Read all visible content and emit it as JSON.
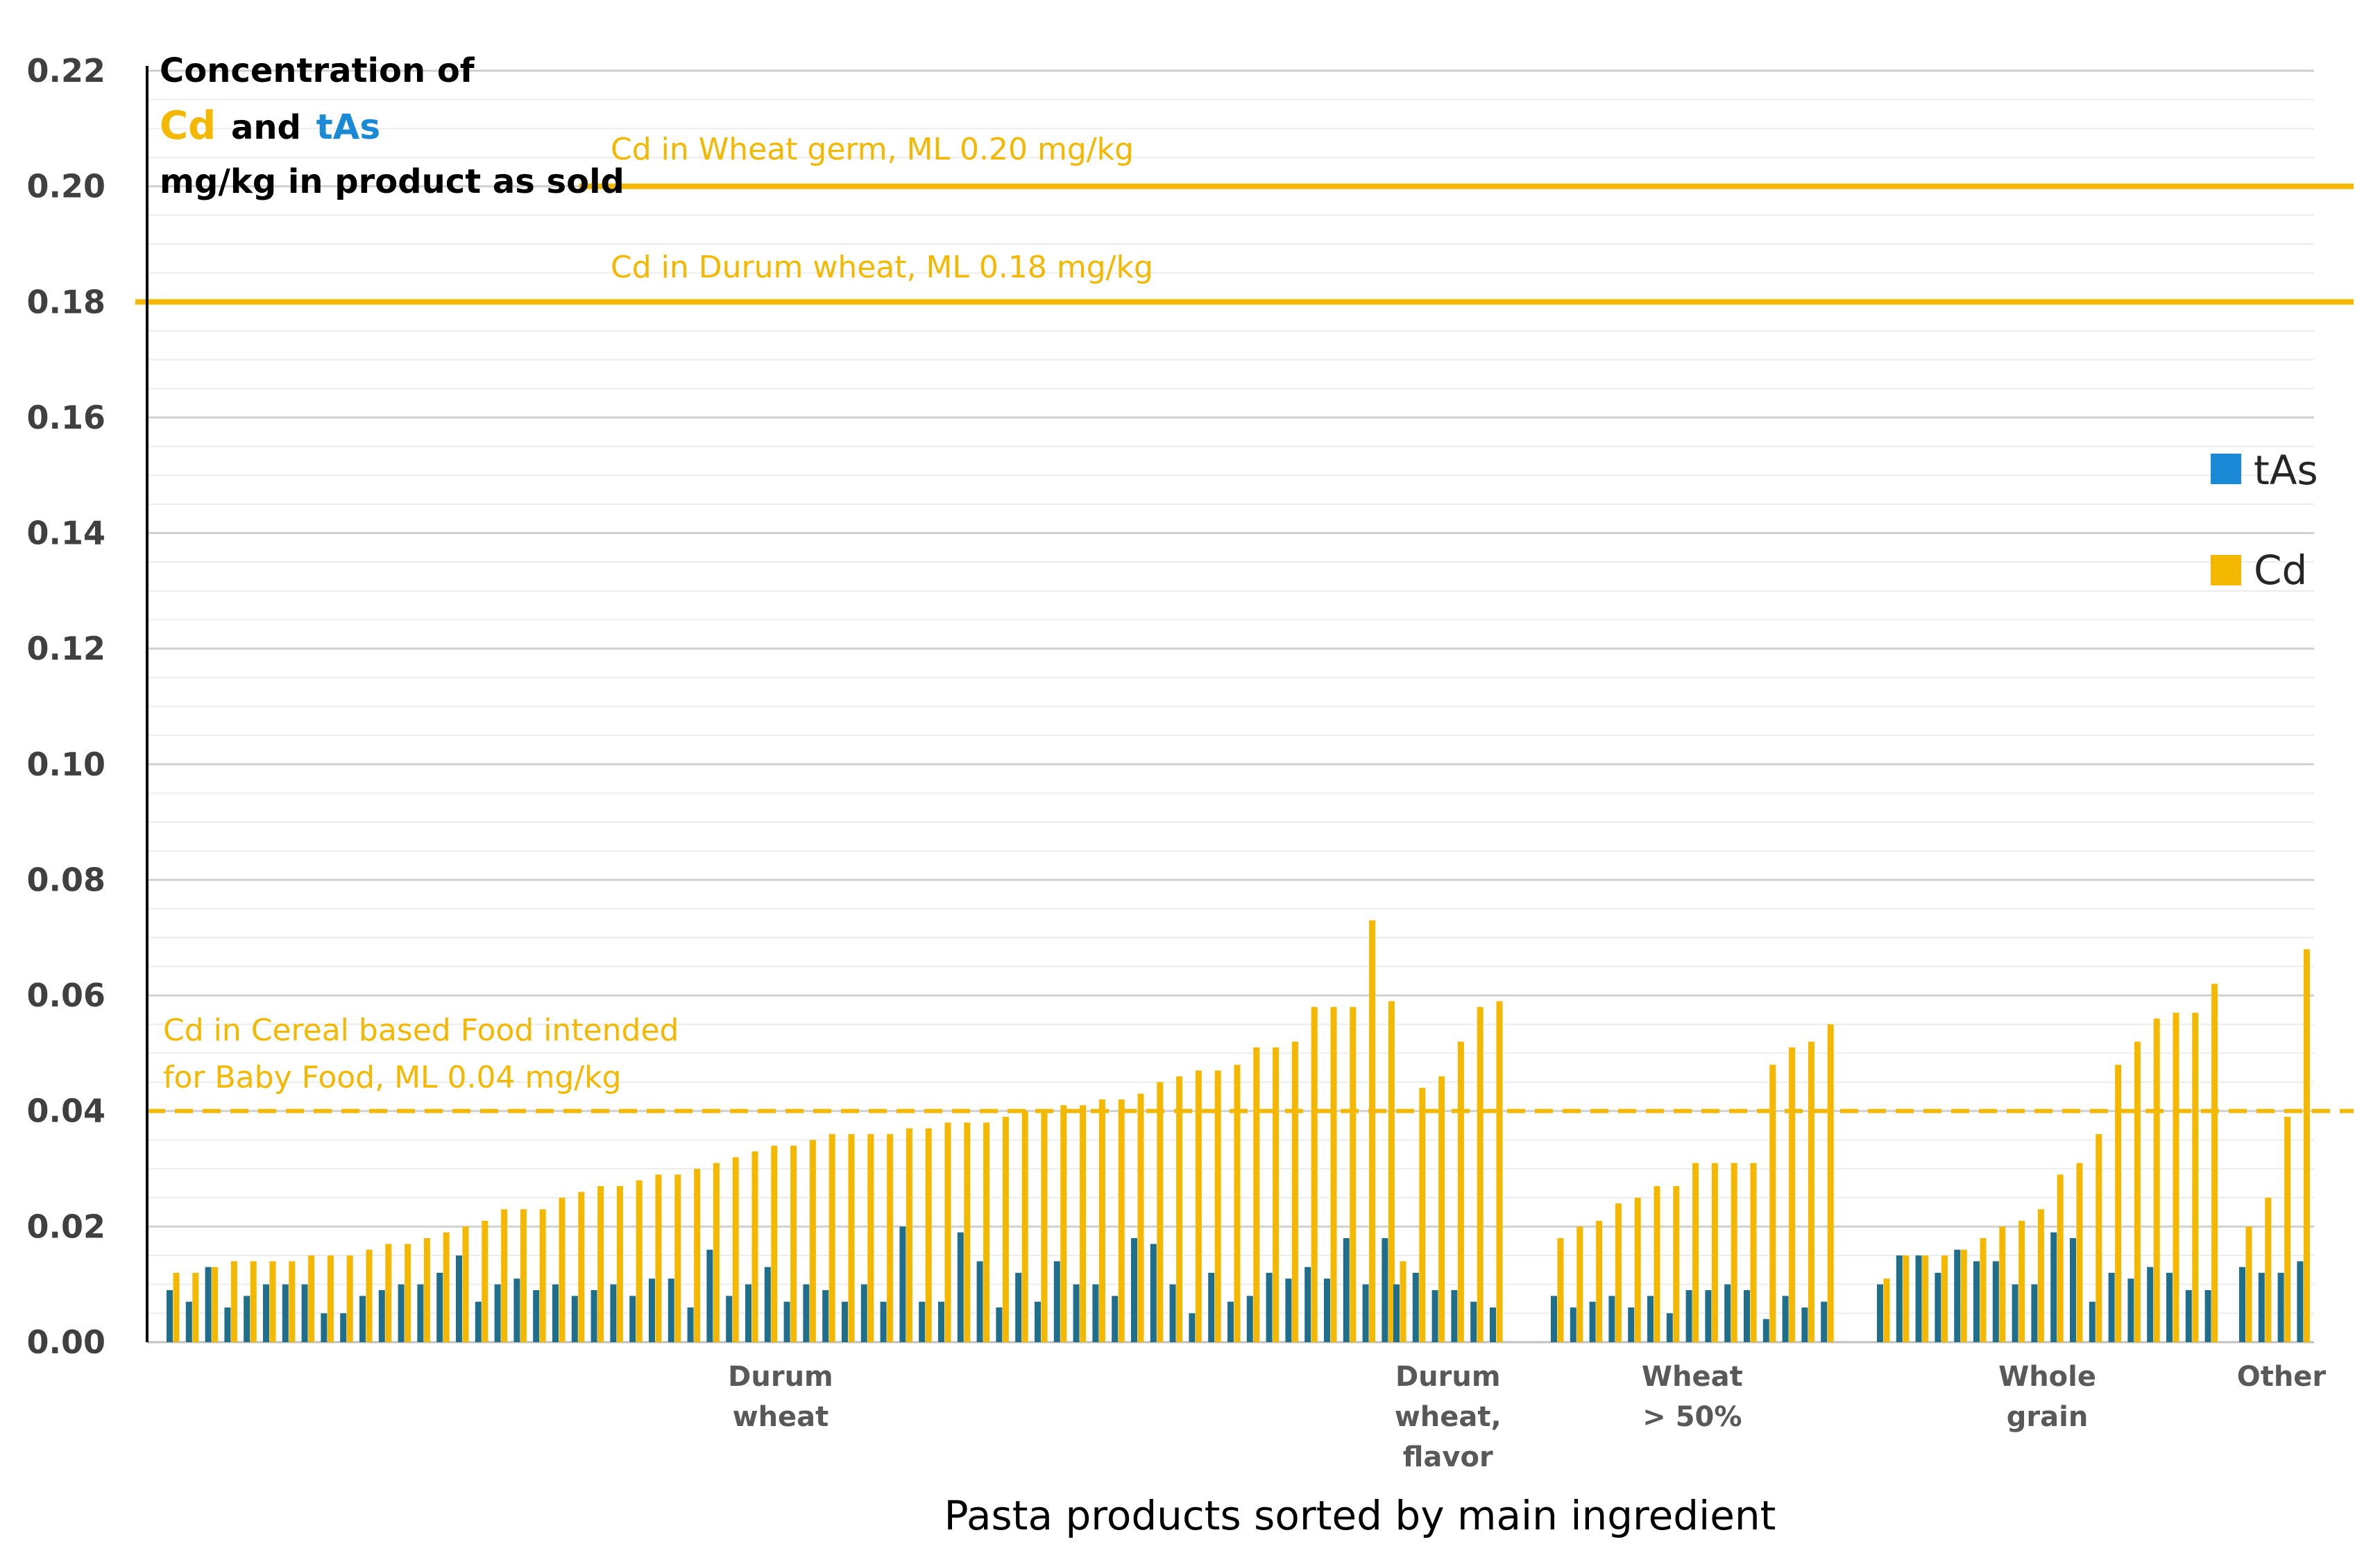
{
  "chart_data": {
    "type": "bar",
    "title_line1": "Concentration of",
    "title_cd": "Cd",
    "title_and": " and ",
    "title_tas": "tAs",
    "title_line3": "mg/kg in product as sold",
    "xlabel": "Pasta products sorted by main ingredient",
    "ylim": [
      0,
      0.22
    ],
    "yticks": [
      "0.00",
      "0.02",
      "0.04",
      "0.06",
      "0.08",
      "0.10",
      "0.12",
      "0.14",
      "0.16",
      "0.18",
      "0.20",
      "0.22"
    ],
    "colors": {
      "Cd": "#F5B800",
      "tAs": "#1F6E8C",
      "tAs_legend": "#1B8AD6"
    },
    "legend": [
      {
        "name": "tAs",
        "color": "#1B8AD6"
      },
      {
        "name": "Cd",
        "color": "#F5B800"
      }
    ],
    "reference_lines": [
      {
        "value": 0.2,
        "label": "Cd in Wheat germ, ML 0.20 mg/kg",
        "style": "solid"
      },
      {
        "value": 0.18,
        "label": "Cd in Durum wheat, ML 0.18 mg/kg",
        "style": "solid"
      },
      {
        "value": 0.04,
        "label_line1": "Cd in Cereal based Food intended",
        "label_line2": "for Baby Food, ML 0.04 mg/kg",
        "style": "dashed"
      }
    ],
    "groups": [
      {
        "label_lines": [
          "Durum",
          "wheat"
        ],
        "Cd": [
          0.012,
          0.012,
          0.013,
          0.014,
          0.014,
          0.014,
          0.014,
          0.015,
          0.015,
          0.015,
          0.016,
          0.017,
          0.017,
          0.018,
          0.019,
          0.02,
          0.021,
          0.023,
          0.023,
          0.023,
          0.025,
          0.026,
          0.027,
          0.027,
          0.028,
          0.029,
          0.029,
          0.03,
          0.031,
          0.032,
          0.033,
          0.034,
          0.034,
          0.035,
          0.036,
          0.036,
          0.036,
          0.036,
          0.037,
          0.037,
          0.038,
          0.038,
          0.038,
          0.039,
          0.04,
          0.04,
          0.041,
          0.041,
          0.042,
          0.042,
          0.043,
          0.045,
          0.046,
          0.047,
          0.047,
          0.048,
          0.051,
          0.051,
          0.052,
          0.058,
          0.058,
          0.058,
          0.073,
          0.059
        ],
        "tAs": [
          0.009,
          0.007,
          0.013,
          0.006,
          0.008,
          0.01,
          0.01,
          0.01,
          0.005,
          0.005,
          0.008,
          0.009,
          0.01,
          0.01,
          0.012,
          0.015,
          0.007,
          0.01,
          0.011,
          0.009,
          0.01,
          0.008,
          0.009,
          0.01,
          0.008,
          0.011,
          0.011,
          0.006,
          0.016,
          0.008,
          0.01,
          0.013,
          0.007,
          0.01,
          0.009,
          0.007,
          0.01,
          0.007,
          0.02,
          0.007,
          0.007,
          0.019,
          0.014,
          0.006,
          0.012,
          0.007,
          0.014,
          0.01,
          0.01,
          0.008,
          0.018,
          0.017,
          0.01,
          0.005,
          0.012,
          0.007,
          0.008,
          0.012,
          0.011,
          0.013,
          0.011,
          0.018,
          0.01,
          0.018
        ]
      },
      {
        "label_lines": [
          "Durum",
          "wheat,",
          "flavor"
        ],
        "Cd": [
          0.014,
          0.044,
          0.046,
          0.052,
          0.058,
          0.059
        ],
        "tAs": [
          0.01,
          0.012,
          0.009,
          0.009,
          0.007,
          0.006
        ]
      },
      {
        "label_lines": [
          "Wheat",
          "> 50%"
        ],
        "Cd": [
          0.018,
          0.02,
          0.021,
          0.024,
          0.025,
          0.027,
          0.027,
          0.031,
          0.031,
          0.031,
          0.031,
          0.048,
          0.051,
          0.052,
          0.055
        ],
        "tAs": [
          0.008,
          0.006,
          0.007,
          0.008,
          0.006,
          0.008,
          0.005,
          0.009,
          0.009,
          0.01,
          0.009,
          0.004,
          0.008,
          0.006,
          0.007
        ]
      },
      {
        "label_lines": [
          "Whole",
          "grain"
        ],
        "Cd": [
          0.011,
          0.015,
          0.015,
          0.015,
          0.016,
          0.018,
          0.02,
          0.021,
          0.023,
          0.029,
          0.031,
          0.036,
          0.048,
          0.052,
          0.056,
          0.057,
          0.057,
          0.062
        ],
        "tAs": [
          0.01,
          0.015,
          0.015,
          0.012,
          0.016,
          0.014,
          0.014,
          0.01,
          0.01,
          0.019,
          0.018,
          0.007,
          0.012,
          0.011,
          0.013,
          0.012,
          0.009,
          0.009
        ]
      },
      {
        "label_lines": [
          "Other"
        ],
        "Cd": [
          0.02,
          0.025,
          0.039,
          0.068
        ],
        "tAs": [
          0.013,
          0.012,
          0.012,
          0.014
        ]
      }
    ]
  }
}
